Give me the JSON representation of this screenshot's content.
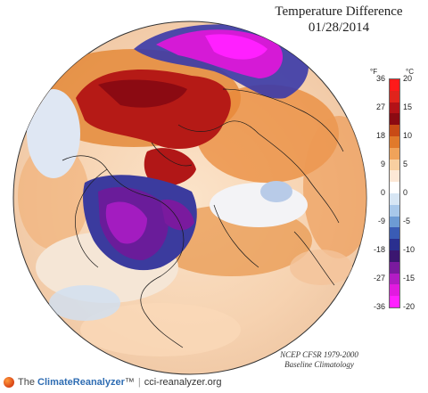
{
  "header": {
    "title": "Temperature Difference",
    "date": "01/28/2014"
  },
  "legend": {
    "unit_f": "°F",
    "unit_c": "°C",
    "fahrenheit_ticks": [
      "36",
      "27",
      "18",
      "9",
      "0",
      "-9",
      "-18",
      "-27",
      "-36"
    ],
    "celsius_ticks": [
      "20",
      "15",
      "10",
      "5",
      "0",
      "-5",
      "-10",
      "-15",
      "-20"
    ],
    "colors": [
      "#ff1a1a",
      "#e0241c",
      "#b31217",
      "#8b0a12",
      "#c84b16",
      "#e07a2b",
      "#f0a35a",
      "#f8cfa0",
      "#fde8d6",
      "#ffffff",
      "#d7e6f4",
      "#a8c8ea",
      "#6d9bd4",
      "#3a5cb5",
      "#2a2f8f",
      "#3b1670",
      "#7a1a9e",
      "#b21cc4",
      "#e11bdf",
      "#ff20ff"
    ]
  },
  "source": {
    "line1": "NCEP CFSR 1979-2000",
    "line2": "Baseline Climatology"
  },
  "footer": {
    "brand_prefix": "The",
    "brand_main": "Climate",
    "brand_accent": "Reanalyzer",
    "brand_tm": "™",
    "separator": "|",
    "url": "cci-reanalyzer.org"
  },
  "map_regions": [
    {
      "name": "siberia-cold-anomaly",
      "color": "#d51ad6"
    },
    {
      "name": "north-america-cold-anomaly",
      "color": "#7a1a9e"
    },
    {
      "name": "alaska-warm-anomaly",
      "color": "#b31217"
    },
    {
      "name": "arctic-warm-anomaly",
      "color": "#c84b16"
    }
  ]
}
